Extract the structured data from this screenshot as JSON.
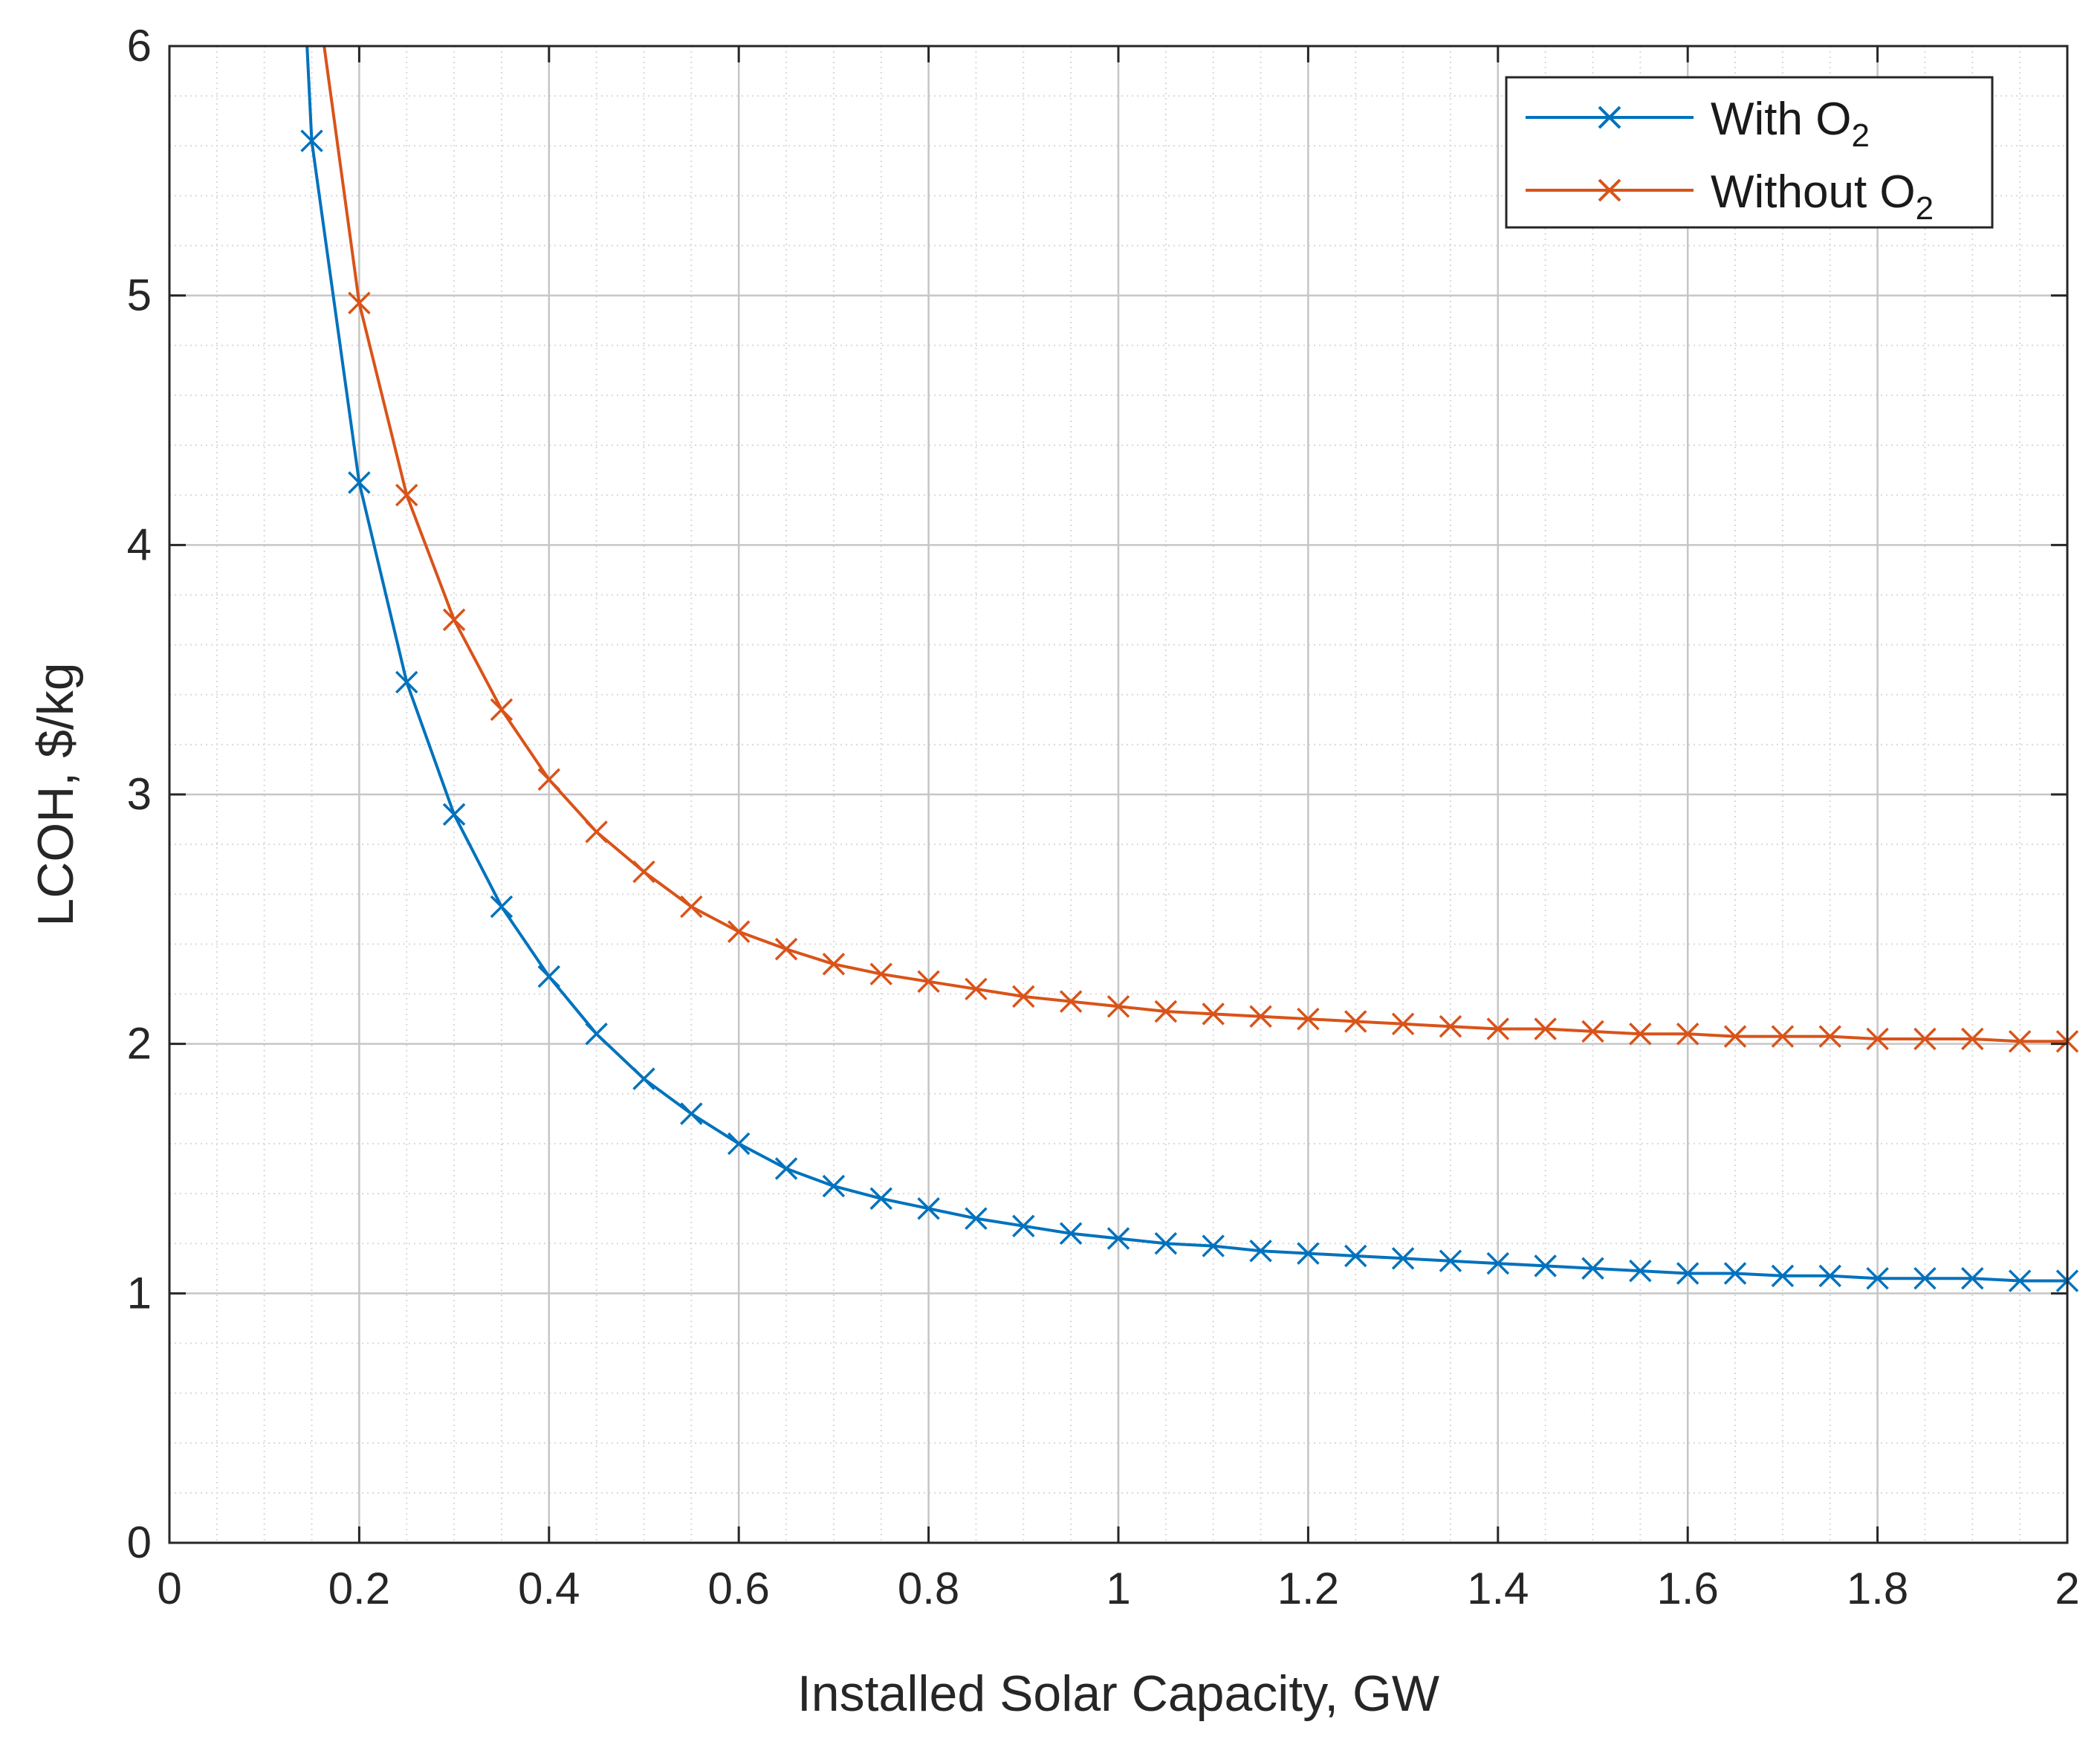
{
  "chart_data": {
    "type": "line",
    "xlabel": "Installed Solar Capacity, GW",
    "ylabel": "LCOH, $/kg",
    "xlim": [
      0,
      2
    ],
    "ylim": [
      0,
      6
    ],
    "x_ticks": [
      "0",
      "0.2",
      "0.4",
      "0.6",
      "0.8",
      "1",
      "1.2",
      "1.4",
      "1.6",
      "1.8",
      "2"
    ],
    "y_ticks": [
      "0",
      "1",
      "2",
      "3",
      "4",
      "5",
      "6"
    ],
    "grid": true,
    "minor_grid": true,
    "legend_position": "top-right",
    "series": [
      {
        "name": "With O2",
        "legend_text": "With O",
        "legend_subscript": "2",
        "color": "#0072BD",
        "marker": "x",
        "x": [
          0.15,
          0.2,
          0.25,
          0.3,
          0.35,
          0.4,
          0.45,
          0.5,
          0.55,
          0.6,
          0.65,
          0.7,
          0.75,
          0.8,
          0.85,
          0.9,
          0.95,
          1.0,
          1.05,
          1.1,
          1.15,
          1.2,
          1.25,
          1.3,
          1.35,
          1.4,
          1.45,
          1.5,
          1.55,
          1.6,
          1.65,
          1.7,
          1.75,
          1.8,
          1.85,
          1.9,
          1.95,
          2.0
        ],
        "y": [
          5.62,
          4.25,
          3.45,
          2.92,
          2.55,
          2.27,
          2.04,
          1.86,
          1.72,
          1.6,
          1.5,
          1.43,
          1.38,
          1.34,
          1.3,
          1.27,
          1.24,
          1.22,
          1.2,
          1.19,
          1.17,
          1.16,
          1.15,
          1.14,
          1.13,
          1.12,
          1.11,
          1.1,
          1.09,
          1.08,
          1.08,
          1.07,
          1.07,
          1.06,
          1.06,
          1.06,
          1.05,
          1.05
        ],
        "curve_start": [
          0.145,
          6.0
        ]
      },
      {
        "name": "Without O2",
        "legend_text": "Without O",
        "legend_subscript": "2",
        "color": "#D95319",
        "marker": "x",
        "x": [
          0.2,
          0.25,
          0.3,
          0.35,
          0.4,
          0.45,
          0.5,
          0.55,
          0.6,
          0.65,
          0.7,
          0.75,
          0.8,
          0.85,
          0.9,
          0.95,
          1.0,
          1.05,
          1.1,
          1.15,
          1.2,
          1.25,
          1.3,
          1.35,
          1.4,
          1.45,
          1.5,
          1.55,
          1.6,
          1.65,
          1.7,
          1.75,
          1.8,
          1.85,
          1.9,
          1.95,
          2.0
        ],
        "y": [
          4.97,
          4.2,
          3.7,
          3.34,
          3.06,
          2.85,
          2.69,
          2.55,
          2.45,
          2.38,
          2.32,
          2.28,
          2.25,
          2.22,
          2.19,
          2.17,
          2.15,
          2.13,
          2.12,
          2.11,
          2.1,
          2.09,
          2.08,
          2.07,
          2.06,
          2.06,
          2.05,
          2.04,
          2.04,
          2.03,
          2.03,
          2.03,
          2.02,
          2.02,
          2.02,
          2.01,
          2.01
        ],
        "curve_start": [
          0.163,
          6.0
        ]
      }
    ]
  }
}
